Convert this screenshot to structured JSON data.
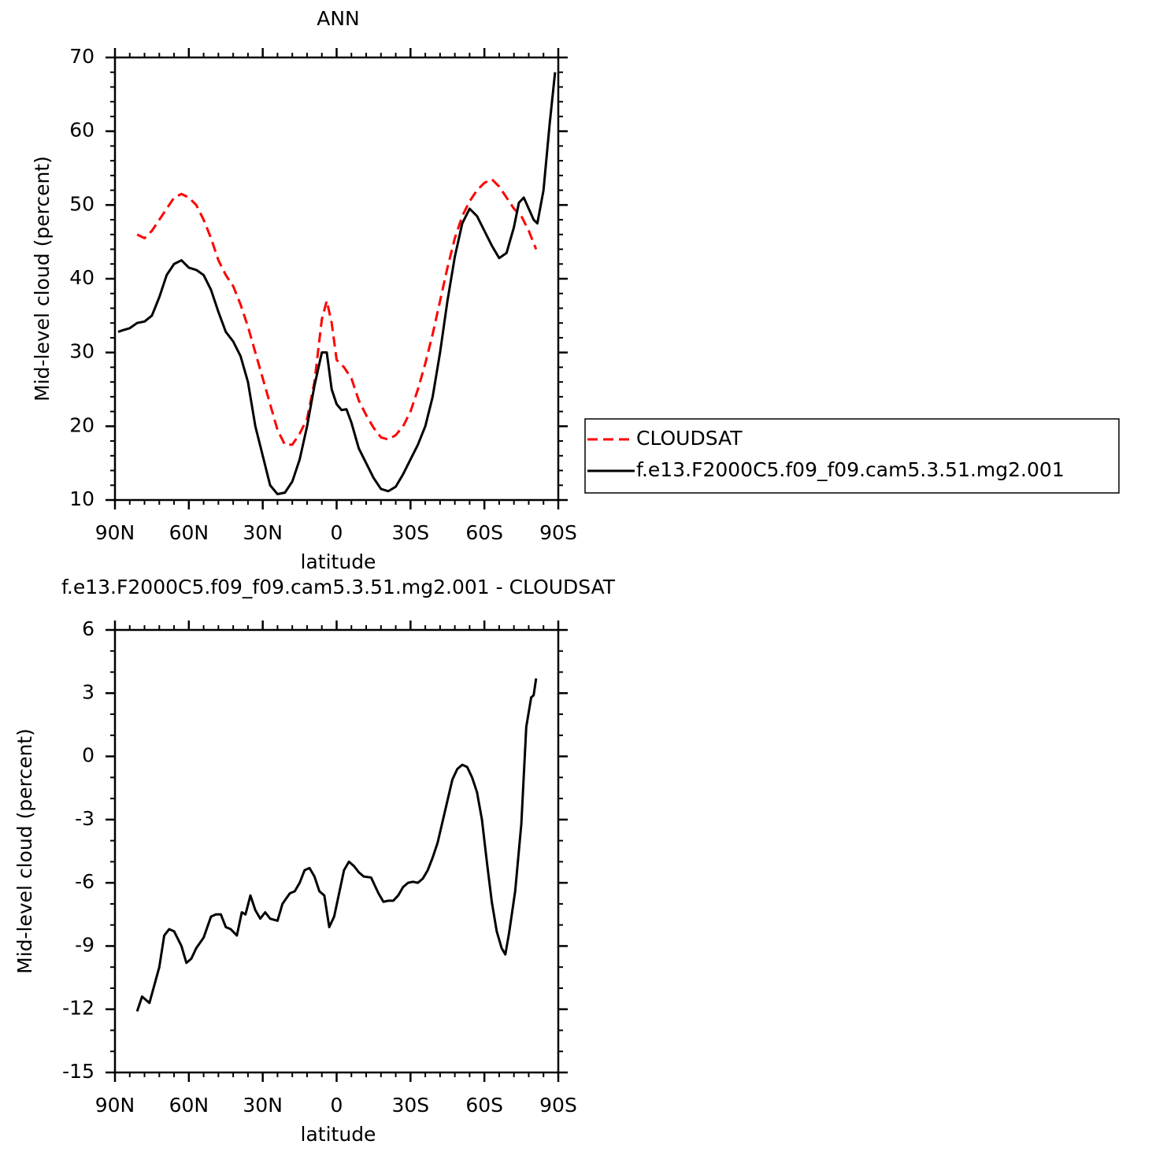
{
  "chart_data": [
    {
      "type": "line",
      "title": "ANN",
      "xlabel": "latitude",
      "ylabel": "Mid-level cloud (percent)",
      "xlim": [
        90,
        -90
      ],
      "xticks": [
        {
          "value": 90,
          "label": "90N"
        },
        {
          "value": 60,
          "label": "60N"
        },
        {
          "value": 30,
          "label": "30N"
        },
        0,
        {
          "value": -30,
          "label": "30S"
        },
        {
          "value": -60,
          "label": "60S"
        },
        {
          "value": -90,
          "label": "90S"
        }
      ],
      "ylim": [
        10,
        70
      ],
      "yticks": [
        10,
        20,
        30,
        40,
        50,
        60,
        70
      ],
      "legend": "right",
      "series": [
        {
          "name": "CLOUDSAT",
          "color": "#ff0000",
          "dash": true,
          "x": [
            81,
            78,
            75,
            72,
            69,
            66,
            63,
            60,
            57,
            54,
            51,
            48,
            45,
            42,
            39,
            36,
            33,
            30,
            27,
            24,
            21,
            18,
            15,
            12,
            9,
            6,
            4,
            2,
            0,
            -3,
            -6,
            -9,
            -12,
            -15,
            -18,
            -21,
            -24,
            -27,
            -30,
            -33,
            -36,
            -39,
            -42,
            -45,
            -48,
            -51,
            -54,
            -57,
            -60,
            -63,
            -66,
            -69,
            -72,
            -75,
            -78,
            -81
          ],
          "values": [
            46,
            45.5,
            46.5,
            48,
            49.5,
            51,
            51.5,
            51,
            50,
            48,
            45.5,
            42.5,
            40.5,
            39,
            36.5,
            33.5,
            30,
            26.5,
            23,
            19.5,
            17.5,
            17.5,
            19,
            21,
            26,
            34.5,
            37,
            34,
            29,
            28,
            26.5,
            23.5,
            21.5,
            19.8,
            18.5,
            18.2,
            18.8,
            20,
            22,
            25,
            28.5,
            32.5,
            37,
            41.5,
            45.5,
            48.5,
            50.5,
            52,
            53,
            53.5,
            52.5,
            51,
            49.5,
            48.5,
            46.5,
            44
          ]
        },
        {
          "name": "f.e13.F2000C5.f09_f09.cam5.3.51.mg2.001",
          "color": "#000000",
          "dash": false,
          "x": [
            88.7,
            87,
            84,
            81,
            78,
            75,
            72,
            69,
            66,
            63,
            60,
            57,
            54,
            51,
            48,
            45,
            42,
            39,
            36,
            33,
            30,
            27,
            24,
            21,
            18,
            15,
            12,
            9,
            6,
            4,
            2,
            0,
            -2,
            -4,
            -6,
            -9,
            -12,
            -15,
            -18,
            -21,
            -24,
            -27,
            -30,
            -33,
            -36,
            -39,
            -42,
            -45,
            -48,
            -51,
            -54,
            -57,
            -60,
            -63,
            -66,
            -69,
            -72,
            -74,
            -76,
            -78,
            -80,
            -81.5,
            -84,
            -86.5,
            -88.7
          ],
          "values": [
            32.8,
            33,
            33.3,
            34,
            34.2,
            35,
            37.5,
            40.5,
            42,
            42.5,
            41.5,
            41.2,
            40.5,
            38.5,
            35.5,
            32.8,
            31.5,
            29.5,
            26,
            20,
            16,
            12,
            10.8,
            11,
            12.5,
            15.5,
            20,
            25.5,
            30,
            30,
            25,
            23,
            22.2,
            22.3,
            20.5,
            17,
            15,
            13,
            11.5,
            11.2,
            11.8,
            13.5,
            15.5,
            17.5,
            20,
            24,
            30,
            37,
            43,
            47.5,
            49.5,
            48.5,
            46.5,
            44.5,
            42.8,
            43.5,
            47,
            50.3,
            51,
            49.5,
            48,
            47.5,
            52,
            61,
            68
          ]
        }
      ]
    },
    {
      "type": "line",
      "title": "f.e13.F2000C5.f09_f09.cam5.3.51.mg2.001  -  CLOUDSAT",
      "xlabel": "latitude",
      "ylabel": "Mid-level cloud (percent)",
      "xlim": [
        90,
        -90
      ],
      "xticks": [
        {
          "value": 90,
          "label": "90N"
        },
        {
          "value": 60,
          "label": "60N"
        },
        {
          "value": 30,
          "label": "30N"
        },
        0,
        {
          "value": -30,
          "label": "30S"
        },
        {
          "value": -60,
          "label": "60S"
        },
        {
          "value": -90,
          "label": "90S"
        }
      ],
      "ylim": [
        -15,
        6
      ],
      "yticks": [
        -15,
        -12,
        -9,
        -6,
        -3,
        0,
        3,
        6
      ],
      "series": [
        {
          "color": "#000000",
          "dash": false,
          "x": [
            81,
            79,
            76,
            72,
            70,
            68,
            66,
            63,
            61,
            59,
            57,
            54,
            51,
            49,
            47,
            45,
            43,
            40.5,
            38.5,
            37,
            35,
            33,
            31,
            29,
            27,
            24,
            22,
            19,
            17,
            15,
            13,
            11,
            9,
            7,
            5,
            3,
            1,
            -1,
            -3,
            -5,
            -7,
            -9,
            -11,
            -14,
            -17,
            -19,
            -21,
            -23,
            -25,
            -27,
            -29,
            -31,
            -33,
            -35,
            -37,
            -39,
            -41,
            -43,
            -45,
            -47,
            -49,
            -51,
            -53,
            -55,
            -57,
            -59,
            -61,
            -63,
            -65,
            -67,
            -68.5,
            -70,
            -72.5,
            -75,
            -77,
            -79,
            -80,
            -81
          ],
          "values": [
            -12.1,
            -11.4,
            -11.7,
            -10,
            -8.5,
            -8.2,
            -8.3,
            -9,
            -9.8,
            -9.6,
            -9.1,
            -8.6,
            -7.6,
            -7.5,
            -7.5,
            -8.1,
            -8.2,
            -8.5,
            -7.4,
            -7.5,
            -6.6,
            -7.3,
            -7.7,
            -7.4,
            -7.7,
            -7.8,
            -7,
            -6.5,
            -6.4,
            -6,
            -5.4,
            -5.3,
            -5.7,
            -6.4,
            -6.6,
            -8.1,
            -7.6,
            -6.5,
            -5.4,
            -5,
            -5.2,
            -5.5,
            -5.7,
            -5.75,
            -6.5,
            -6.9,
            -6.85,
            -6.85,
            -6.6,
            -6.2,
            -6,
            -5.95,
            -6,
            -5.8,
            -5.4,
            -4.8,
            -4.1,
            -3.1,
            -2.1,
            -1.1,
            -0.6,
            -0.4,
            -0.5,
            -1,
            -1.7,
            -3,
            -5,
            -6.9,
            -8.3,
            -9.1,
            -9.4,
            -8.4,
            -6.4,
            -3.2,
            1.4,
            2.8,
            2.9,
            3.7
          ]
        }
      ]
    }
  ]
}
